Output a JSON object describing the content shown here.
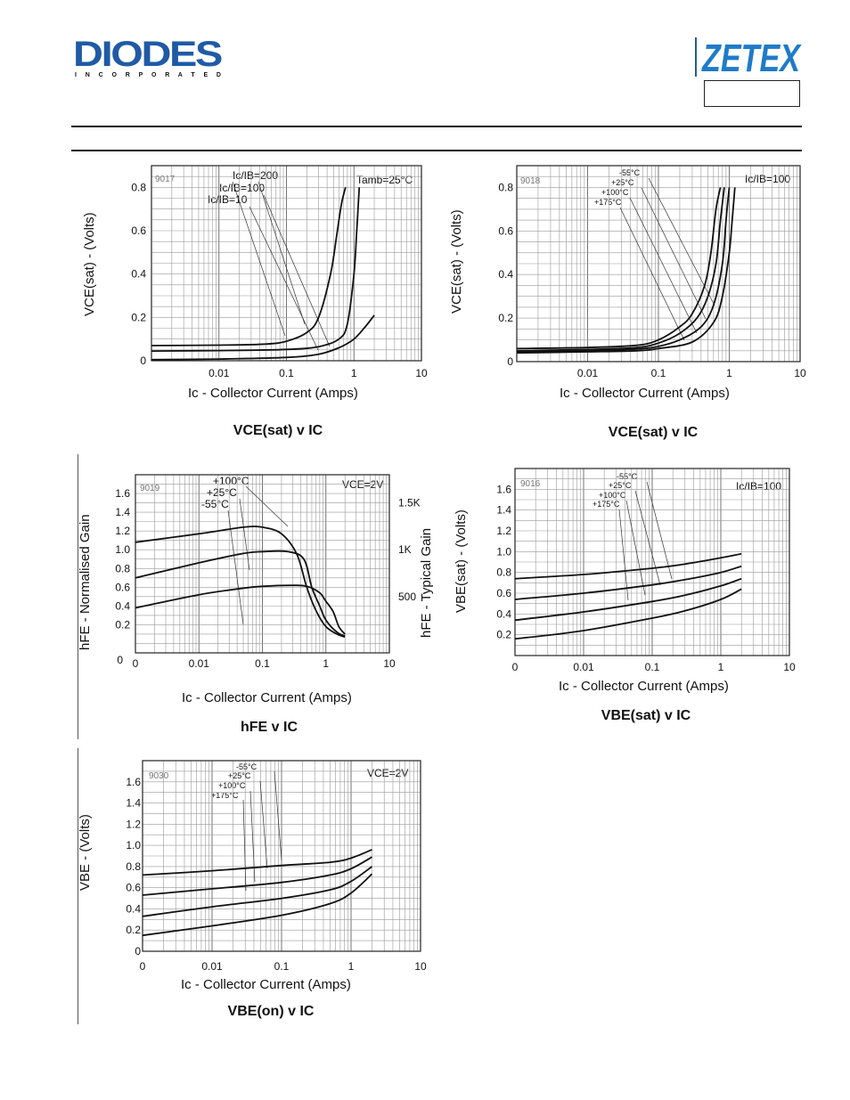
{
  "header": {
    "brand_left": "DIODES",
    "brand_left_sub": "I N C O R P O R A T E D",
    "brand_right": "ZETEX"
  },
  "chart_data": [
    {
      "id": "c1",
      "type": "line",
      "code": "9017",
      "xscale": "log",
      "xlim": [
        0.001,
        10
      ],
      "ylim": [
        0,
        0.9
      ],
      "xticks": [
        0.01,
        0.1,
        1,
        10
      ],
      "xtick_labels": [
        "0.01",
        "0.1",
        "1",
        "10"
      ],
      "yticks": [
        0,
        0.2,
        0.4,
        0.6,
        0.8
      ],
      "ytick_labels": [
        "0",
        "0.2",
        "0.4",
        "0.6",
        "0.8"
      ],
      "xlabel": "Ic - Collector Current (Amps)",
      "ylabel": "VCE(sat) - (Volts)",
      "title": "VCE(sat) v IC",
      "annotations": [
        "Ic/IB=200",
        "Ic/IB=100",
        "Ic/IB=10",
        "Tamb=25°C"
      ],
      "series": [
        {
          "x": [
            0.001,
            0.01,
            0.05,
            0.1,
            0.2,
            0.3,
            0.45,
            0.55,
            0.65,
            0.75
          ],
          "y": [
            0.07,
            0.072,
            0.077,
            0.09,
            0.13,
            0.2,
            0.4,
            0.57,
            0.72,
            0.8
          ]
        },
        {
          "x": [
            0.001,
            0.01,
            0.1,
            0.3,
            0.6,
            0.8,
            1.0,
            1.1,
            1.2
          ],
          "y": [
            0.045,
            0.047,
            0.052,
            0.065,
            0.1,
            0.17,
            0.4,
            0.6,
            0.8
          ]
        },
        {
          "x": [
            0.001,
            0.01,
            0.1,
            0.3,
            0.6,
            1.0,
            1.5,
            2.0
          ],
          "y": [
            0.005,
            0.008,
            0.015,
            0.03,
            0.06,
            0.1,
            0.16,
            0.21
          ]
        }
      ]
    },
    {
      "id": "c2",
      "type": "line",
      "code": "9018",
      "xscale": "log",
      "xlim": [
        0.001,
        10
      ],
      "ylim": [
        0,
        0.9
      ],
      "xticks": [
        0.01,
        0.1,
        1,
        10
      ],
      "xtick_labels": [
        "0.01",
        "0.1",
        "1",
        "10"
      ],
      "yticks": [
        0,
        0.2,
        0.4,
        0.6,
        0.8
      ],
      "ytick_labels": [
        "0",
        "0.2",
        "0.4",
        "0.6",
        "0.8"
      ],
      "xlabel": "Ic - Collector Current (Amps)",
      "ylabel": "VCE(sat) - (Volts)",
      "title": "VCE(sat) v IC",
      "annotations": [
        "Ic/IB=100"
      ],
      "legend_labels": [
        "-55°C",
        "+25°C",
        "+100°C",
        "+175°C"
      ],
      "series": [
        {
          "name": "-55°C",
          "x": [
            0.001,
            0.01,
            0.05,
            0.1,
            0.2,
            0.3,
            0.45,
            0.55,
            0.65,
            0.75
          ],
          "y": [
            0.06,
            0.065,
            0.075,
            0.1,
            0.16,
            0.22,
            0.35,
            0.5,
            0.7,
            0.8
          ]
        },
        {
          "name": "+25°C",
          "x": [
            0.001,
            0.01,
            0.05,
            0.1,
            0.2,
            0.35,
            0.5,
            0.65,
            0.75,
            0.85
          ],
          "y": [
            0.05,
            0.056,
            0.065,
            0.085,
            0.13,
            0.2,
            0.3,
            0.45,
            0.65,
            0.8
          ]
        },
        {
          "name": "+100°C",
          "x": [
            0.001,
            0.01,
            0.05,
            0.1,
            0.2,
            0.4,
            0.6,
            0.8,
            0.9,
            1.0
          ],
          "y": [
            0.045,
            0.05,
            0.058,
            0.07,
            0.1,
            0.16,
            0.26,
            0.45,
            0.65,
            0.8
          ]
        },
        {
          "name": "+175°C",
          "x": [
            0.001,
            0.01,
            0.05,
            0.1,
            0.3,
            0.6,
            0.8,
            1.0,
            1.1,
            1.2
          ],
          "y": [
            0.04,
            0.045,
            0.05,
            0.06,
            0.09,
            0.18,
            0.3,
            0.5,
            0.65,
            0.8
          ]
        }
      ]
    },
    {
      "id": "c3",
      "type": "line",
      "code": "9019",
      "xscale": "log",
      "xlim": [
        0.001,
        10
      ],
      "ylim": [
        -0.1,
        1.8
      ],
      "xticks": [
        0.01,
        0.1,
        1,
        10
      ],
      "xtick_labels": [
        "0.01",
        "0.1",
        "1",
        "10"
      ],
      "yticks": [
        0.2,
        0.4,
        0.6,
        0.8,
        1.0,
        1.2,
        1.4,
        1.6
      ],
      "ytick_labels": [
        "0.2",
        "0.4",
        "0.6",
        "0.8",
        "1.0",
        "1.2",
        "1.4",
        "1.6"
      ],
      "y_extra_label": "0",
      "x_extra_label": "0",
      "right_ticks": [
        {
          "label": "1.5K",
          "y": 1.5
        },
        {
          "label": "1K",
          "y": 1.0
        },
        {
          "label": "500",
          "y": 0.5
        }
      ],
      "xlabel": "Ic - Collector Current (Amps)",
      "ylabel": "hFE - Normalised Gain",
      "ylabel_right": "hFE - Typical Gain",
      "title": "hFE v IC",
      "annotations": [
        "VCE=2V"
      ],
      "legend_labels": [
        "+100°C",
        "+25°C",
        "-55°C"
      ],
      "series": [
        {
          "name": "+100°C",
          "x": [
            0.001,
            0.01,
            0.05,
            0.1,
            0.2,
            0.35,
            0.5,
            0.7,
            1.0,
            1.5,
            2.0
          ],
          "y": [
            1.08,
            1.17,
            1.24,
            1.24,
            1.17,
            0.95,
            0.6,
            0.35,
            0.18,
            0.1,
            0.07
          ]
        },
        {
          "name": "+25°C",
          "x": [
            0.001,
            0.01,
            0.05,
            0.1,
            0.25,
            0.45,
            0.6,
            0.8,
            1.0,
            1.5,
            2.0
          ],
          "y": [
            0.7,
            0.86,
            0.96,
            0.98,
            0.98,
            0.9,
            0.6,
            0.4,
            0.25,
            0.12,
            0.08
          ]
        },
        {
          "name": "-55°C",
          "x": [
            0.001,
            0.01,
            0.05,
            0.1,
            0.3,
            0.5,
            0.8,
            1.0,
            1.3,
            1.6,
            2.0
          ],
          "y": [
            0.38,
            0.52,
            0.59,
            0.61,
            0.62,
            0.61,
            0.54,
            0.45,
            0.34,
            0.18,
            0.1
          ]
        }
      ]
    },
    {
      "id": "c4",
      "type": "line",
      "code": "9016",
      "xscale": "log",
      "xlim": [
        0.001,
        10
      ],
      "ylim": [
        0,
        1.8
      ],
      "xticks": [
        0.01,
        0.1,
        1,
        10
      ],
      "xtick_labels": [
        "0.01",
        "0.1",
        "1",
        "10"
      ],
      "yticks": [
        0.2,
        0.4,
        0.6,
        0.8,
        1.0,
        1.2,
        1.4,
        1.6
      ],
      "ytick_labels": [
        "0.2",
        "0.4",
        "0.6",
        "0.8",
        "1.0",
        "1.2",
        "1.4",
        "1.6"
      ],
      "x_extra_label": "0",
      "xlabel": "Ic - Collector Current (Amps)",
      "ylabel": "VBE(sat) - (Volts)",
      "title": "VBE(sat) v IC",
      "annotations": [
        "Ic/IB=100"
      ],
      "legend_labels": [
        "-55°C",
        "+25°C",
        "+100°C",
        "+175°C"
      ],
      "series": [
        {
          "name": "-55°C",
          "x": [
            0.001,
            0.01,
            0.1,
            0.3,
            1.0,
            2.0
          ],
          "y": [
            0.74,
            0.78,
            0.84,
            0.88,
            0.94,
            0.98
          ]
        },
        {
          "name": "+25°C",
          "x": [
            0.001,
            0.01,
            0.1,
            0.3,
            1.0,
            2.0
          ],
          "y": [
            0.54,
            0.6,
            0.68,
            0.73,
            0.8,
            0.86
          ]
        },
        {
          "name": "+100°C",
          "x": [
            0.001,
            0.01,
            0.1,
            0.3,
            1.0,
            2.0
          ],
          "y": [
            0.34,
            0.42,
            0.52,
            0.58,
            0.67,
            0.74
          ]
        },
        {
          "name": "+175°C",
          "x": [
            0.001,
            0.01,
            0.1,
            0.3,
            1.0,
            2.0
          ],
          "y": [
            0.16,
            0.24,
            0.36,
            0.43,
            0.54,
            0.64
          ]
        }
      ]
    },
    {
      "id": "c5",
      "type": "line",
      "code": "9030",
      "xscale": "log",
      "xlim": [
        0.001,
        10
      ],
      "ylim": [
        0,
        1.8
      ],
      "xticks": [
        0.01,
        0.1,
        1,
        10
      ],
      "xtick_labels": [
        "0.01",
        "0.1",
        "1",
        "10"
      ],
      "yticks": [
        0,
        0.2,
        0.4,
        0.6,
        0.8,
        1.0,
        1.2,
        1.4,
        1.6
      ],
      "ytick_labels": [
        "0",
        "0.2",
        "0.4",
        "0.6",
        "0.8",
        "1.0",
        "1.2",
        "1.4",
        "1.6"
      ],
      "x_extra_label": "0",
      "xlabel": "Ic - Collector Current (Amps)",
      "ylabel": "VBE - (Volts)",
      "title": "VBE(on) v IC",
      "annotations": [
        "VCE=2V"
      ],
      "legend_labels": [
        "-55°C",
        "+25°C",
        "+100°C",
        "+175°C"
      ],
      "series": [
        {
          "name": "-55°C",
          "x": [
            0.001,
            0.01,
            0.1,
            0.5,
            1.0,
            2.0
          ],
          "y": [
            0.72,
            0.76,
            0.81,
            0.84,
            0.88,
            0.96
          ]
        },
        {
          "name": "+25°C",
          "x": [
            0.001,
            0.01,
            0.1,
            0.5,
            1.0,
            2.0
          ],
          "y": [
            0.53,
            0.59,
            0.65,
            0.72,
            0.78,
            0.89
          ]
        },
        {
          "name": "+100°C",
          "x": [
            0.001,
            0.01,
            0.1,
            0.5,
            1.0,
            2.0
          ],
          "y": [
            0.33,
            0.42,
            0.5,
            0.58,
            0.66,
            0.8
          ]
        },
        {
          "name": "+175°C",
          "x": [
            0.001,
            0.01,
            0.1,
            0.5,
            1.0,
            2.0
          ],
          "y": [
            0.15,
            0.24,
            0.34,
            0.45,
            0.55,
            0.73
          ]
        }
      ]
    }
  ]
}
